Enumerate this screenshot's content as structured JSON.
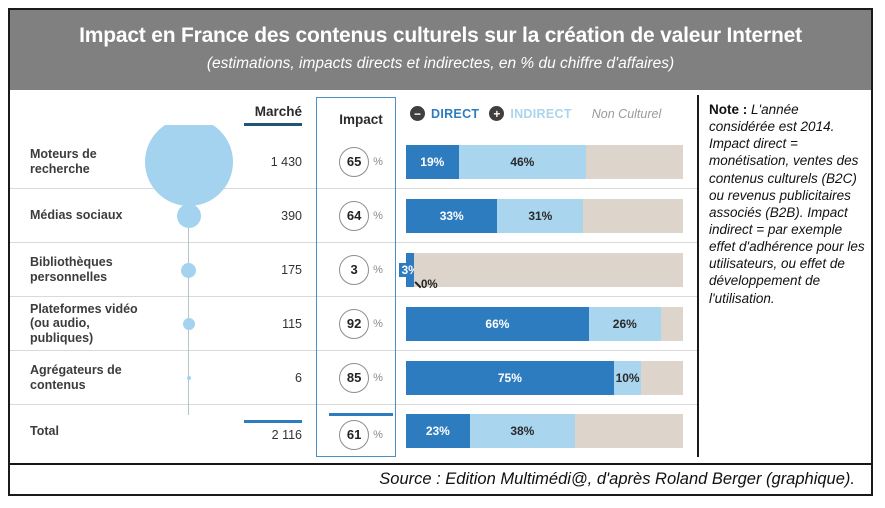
{
  "header": {
    "title": "Impact en France des contenus culturels sur la création de valeur Internet",
    "subtitle": "(estimations, impacts directs et indirectes, en % du chiffre d'affaires)"
  },
  "columns": {
    "marche": "Marché",
    "impact": "Impact"
  },
  "legend": {
    "minus": "−",
    "direct": "DIRECT",
    "plus": "+",
    "indirect": "INDIRECT",
    "non_cultural": "Non Culturel"
  },
  "labels": {
    "percent": "%"
  },
  "rows": [
    {
      "label": "Moteurs de recherche",
      "marche": "1 430",
      "market": 1430,
      "impact": "65",
      "direct": 19,
      "indirect": 46,
      "direct_label": "19%",
      "indirect_label": "46%"
    },
    {
      "label": "Médias sociaux",
      "marche": "390",
      "market": 390,
      "impact": "64",
      "direct": 33,
      "indirect": 31,
      "direct_label": "33%",
      "indirect_label": "31%"
    },
    {
      "label": "Bibliothèques personnelles",
      "marche": "175",
      "market": 175,
      "impact": "3",
      "direct": 3,
      "indirect": 0,
      "direct_label": "3%",
      "indirect_label": "",
      "annotation": "0%"
    },
    {
      "label": "Plateformes vidéo (ou audio, publiques)",
      "marche": "115",
      "market": 115,
      "impact": "92",
      "direct": 66,
      "indirect": 26,
      "direct_label": "66%",
      "indirect_label": "26%"
    },
    {
      "label": "Agrégateurs de contenus",
      "marche": "6",
      "market": 6,
      "impact": "85",
      "direct": 75,
      "indirect": 10,
      "direct_label": "75%",
      "indirect_label": "10%"
    }
  ],
  "total": {
    "label": "Total",
    "marche": "2 116",
    "impact": "61",
    "direct": 23,
    "indirect": 38,
    "direct_label": "23%",
    "indirect_label": "38%"
  },
  "note": {
    "label": "Note :",
    "text": "L'année considérée est 2014. Impact direct = monétisation, ventes des contenus culturels (B2C) ou revenus publicitaires associés (B2B). Impact indirect = par exemple effet d'adhérence pour les utilisateurs, ou effet de développement de l'utilisation."
  },
  "source": "Source : Edition Multimédi@, d'après Roland Berger (graphique).",
  "colors": {
    "header_bg": "#808080",
    "direct": "#2e7cc0",
    "indirect": "#a9d5ee",
    "non_cultural": "#ddd5cb",
    "underline": "#1f5674",
    "bubble": "#a3d3ee"
  },
  "chart_data": {
    "type": "bar",
    "orientation": "horizontal",
    "stacked": true,
    "title": "Impact en France des contenus culturels sur la création de valeur Internet",
    "subtitle": "(estimations, impacts directs et indirectes, en % du chiffre d'affaires)",
    "categories": [
      "Moteurs de recherche",
      "Médias sociaux",
      "Bibliothèques personnelles",
      "Plateformes vidéo (ou audio, publiques)",
      "Agrégateurs de contenus",
      "Total"
    ],
    "market_label": "Marché",
    "market_values": [
      1430,
      390,
      175,
      115,
      6,
      2116
    ],
    "impact_label": "Impact",
    "impact_pct": [
      65,
      64,
      3,
      92,
      85,
      61
    ],
    "series": [
      {
        "name": "Direct",
        "values": [
          19,
          33,
          3,
          66,
          75,
          23
        ]
      },
      {
        "name": "Indirect",
        "values": [
          46,
          31,
          0,
          26,
          10,
          38
        ]
      },
      {
        "name": "Non Culturel",
        "values": [
          35,
          36,
          97,
          8,
          15,
          39
        ]
      }
    ],
    "xlim": [
      0,
      100
    ],
    "legend_position": "top",
    "grid": false
  }
}
